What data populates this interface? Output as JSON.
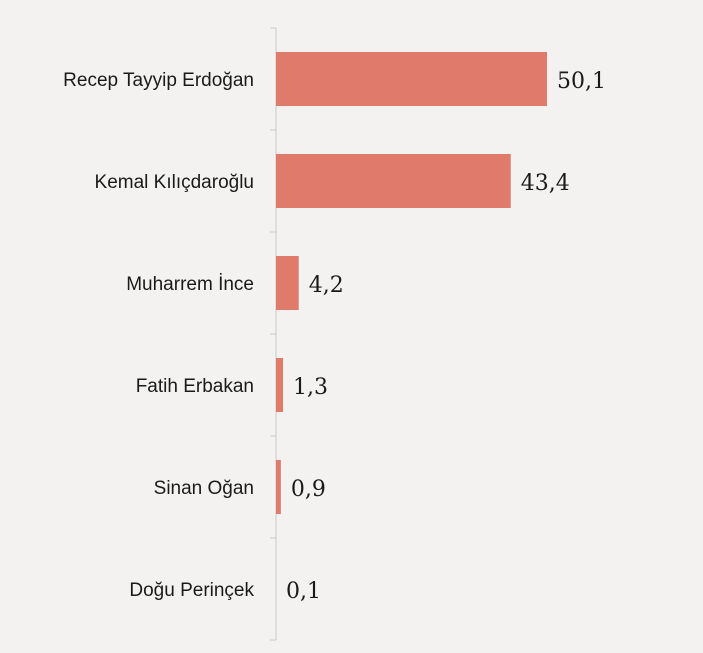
{
  "chart_data": {
    "type": "bar",
    "orientation": "horizontal",
    "categories": [
      "Recep Tayyip Erdoğan",
      "Kemal Kılıçdaroğlu",
      "Muharrem İnce",
      "Fatih Erbakan",
      "Sinan Oğan",
      "Doğu Perinçek"
    ],
    "values": [
      50.1,
      43.4,
      4.2,
      1.3,
      0.9,
      0.1
    ],
    "value_labels": [
      "50,1",
      "43,4",
      "4,2",
      "1,3",
      "0,9",
      "0,1"
    ],
    "title": "",
    "xlabel": "",
    "ylabel": "",
    "xlim": [
      0,
      56
    ],
    "grid": false,
    "legend": "none",
    "bar_color": "#e07a6a",
    "axis_color": "#c9c9c9",
    "text_color": "#1a1a1a",
    "background": "#f3f2f1"
  }
}
